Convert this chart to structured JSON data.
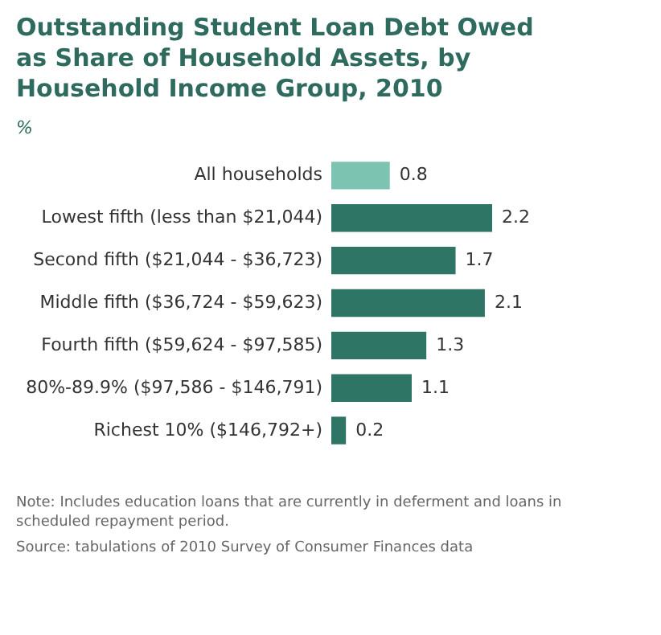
{
  "chart_data": {
    "type": "bar",
    "orientation": "horizontal",
    "title": "Outstanding Student Loan Debt Owed as Share of Household Assets, by Household Income Group, 2010",
    "subtitle": "%",
    "categories": [
      "All households",
      "Lowest fifth (less than $21,044)",
      "Second fifth ($21,044 - $36,723)",
      "Middle fifth ($36,724 - $59,623)",
      "Fourth fifth ($59,624 - $97,585)",
      "80%-89.9% ($97,586 - $146,791)",
      "Richest 10% ($146,792+)"
    ],
    "values": [
      0.8,
      2.2,
      1.7,
      2.1,
      1.3,
      1.1,
      0.2
    ],
    "colors": [
      "#7cc3b1",
      "#2f7566",
      "#2f7566",
      "#2f7566",
      "#2f7566",
      "#2f7566",
      "#2f7566"
    ],
    "data_labels": true,
    "annotations": [
      "Note: Includes education loans that are currently in deferment and loans in scheduled repayment period.",
      "Source: tabulations of 2010 Survey of Consumer Finances data"
    ]
  }
}
